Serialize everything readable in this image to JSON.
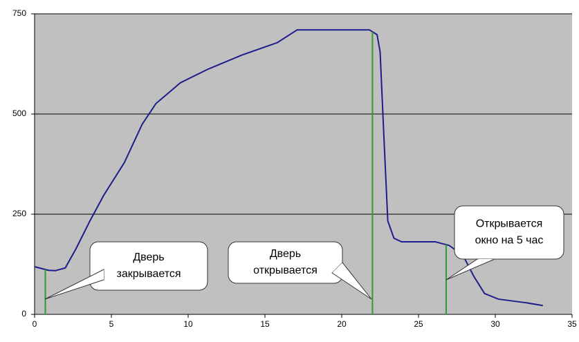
{
  "chart_data": {
    "type": "line",
    "x": [
      0,
      0.9,
      1.35,
      2.0,
      2.7,
      3.6,
      4.5,
      5.85,
      7.0,
      7.9,
      9.5,
      11.3,
      13.5,
      15.8,
      17.1,
      21.8,
      22.3,
      22.5,
      22.75,
      23.0,
      23.4,
      23.9,
      26.1,
      27.0,
      27.9,
      28.6,
      29.3,
      30.2,
      32.0,
      33.1
    ],
    "series": [
      {
        "color": "#1c1c8c",
        "values": [
          119,
          110,
          109,
          116,
          164,
          233,
          297,
          379,
          474,
          526,
          578,
          612,
          647,
          678,
          710,
          710,
          698,
          655,
          440,
          233,
          190,
          181,
          181,
          172,
          147,
          95,
          52,
          38,
          29,
          22
        ]
      }
    ],
    "xlim": [
      0,
      35
    ],
    "xticks": [
      0,
      5,
      10,
      15,
      20,
      25,
      30,
      35
    ],
    "ylim": [
      0,
      750
    ],
    "yticks": [
      0,
      250,
      500,
      750
    ],
    "grid": true,
    "annotations": [
      {
        "x": 0.7,
        "lines": [
          "Дверь",
          "закрывается"
        ]
      },
      {
        "x": 22,
        "lines": [
          "Дверь",
          "открывается"
        ]
      },
      {
        "x": 26.8,
        "lines": [
          "Открывается",
          "окно на 5 час"
        ]
      }
    ],
    "marker_color": "#2e9a3a"
  }
}
